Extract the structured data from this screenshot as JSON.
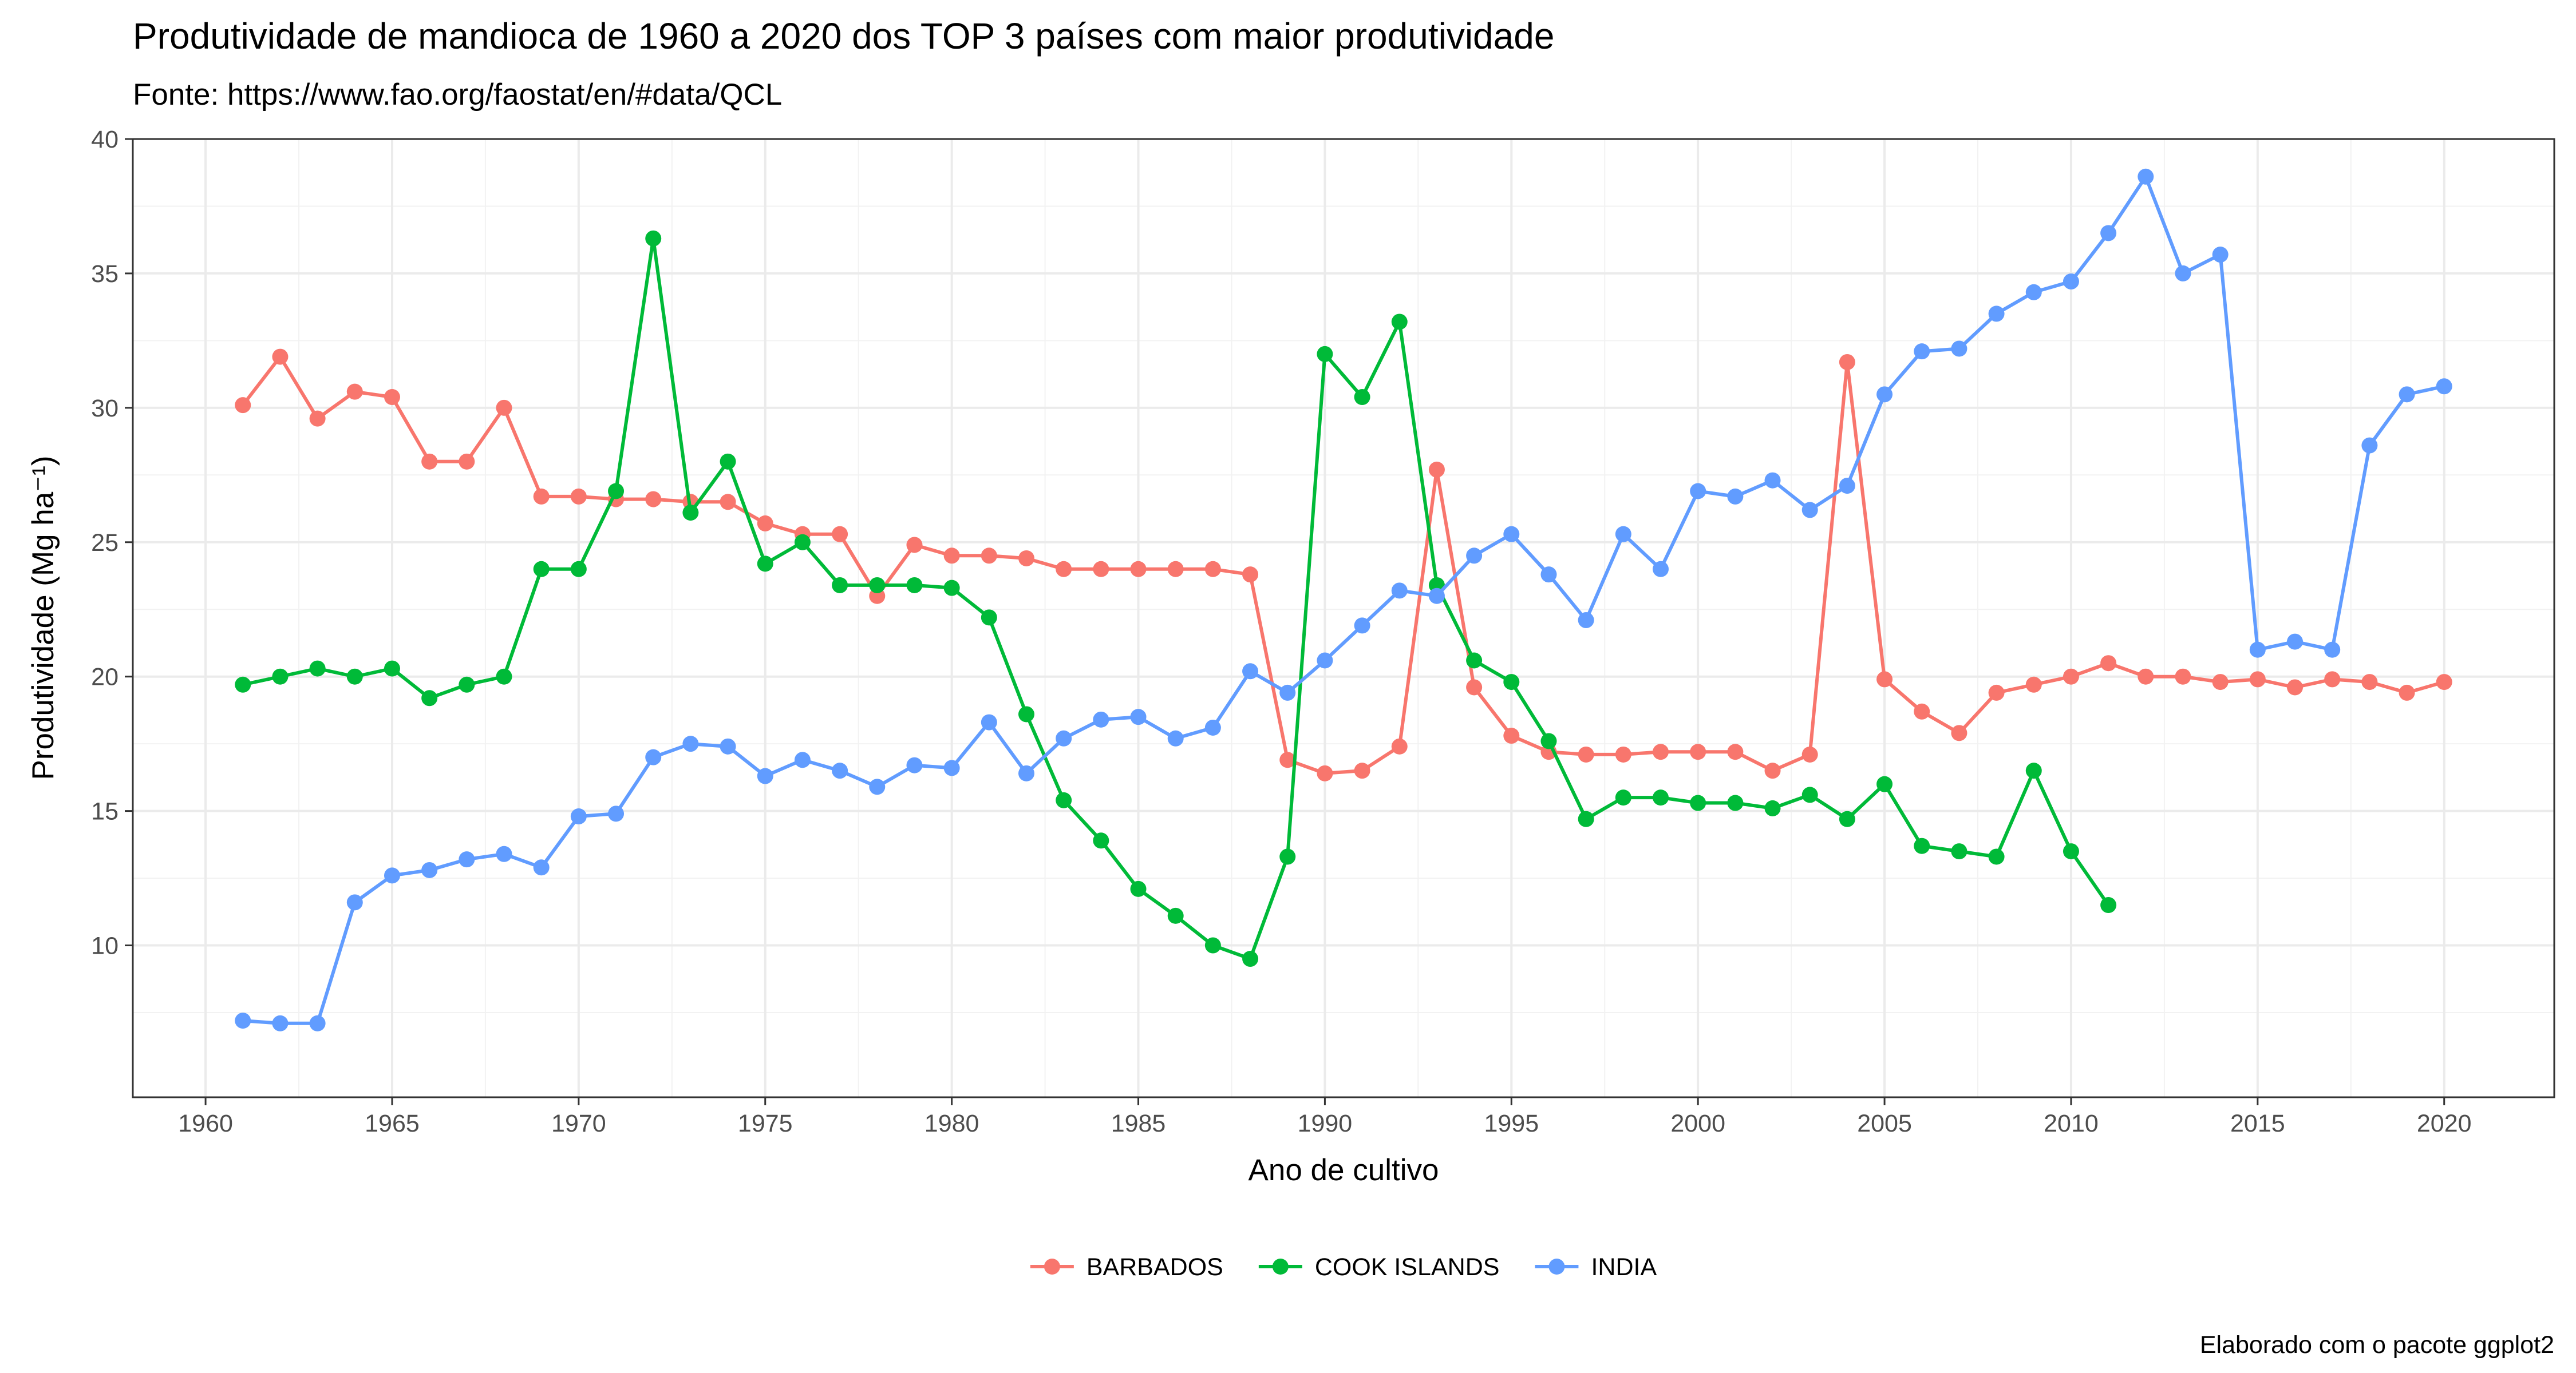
{
  "title": "Produtividade de mandioca de 1960 a 2020 dos TOP 3 países com maior produtividade",
  "subtitle": "Fonte: https://www.fao.org/faostat/en/#data/QCL",
  "caption": "Elaborado com o pacote ggplot2",
  "chart_data": {
    "type": "line",
    "xlabel": "Ano de cultivo",
    "ylabel": "Produtividade (Mg ha⁻¹)",
    "xlim": [
      1958.05,
      2022.95
    ],
    "ylim": [
      4.35,
      40.0
    ],
    "x_ticks": [
      1960,
      1965,
      1970,
      1975,
      1980,
      1985,
      1990,
      1995,
      2000,
      2005,
      2010,
      2015,
      2020
    ],
    "y_ticks": [
      10,
      15,
      20,
      25,
      30,
      35,
      40
    ],
    "grid": true,
    "legend_position": "bottom",
    "series": [
      {
        "name": "BARBADOS",
        "color": "#F8766D",
        "x": [
          1961,
          1962,
          1963,
          1964,
          1965,
          1966,
          1967,
          1968,
          1969,
          1970,
          1971,
          1972,
          1973,
          1974,
          1975,
          1976,
          1977,
          1978,
          1979,
          1980,
          1981,
          1982,
          1983,
          1984,
          1985,
          1986,
          1987,
          1988,
          1989,
          1990,
          1991,
          1992,
          1993,
          1994,
          1995,
          1996,
          1997,
          1998,
          1999,
          2000,
          2001,
          2002,
          2003,
          2004,
          2005,
          2006,
          2007,
          2008,
          2009,
          2010,
          2011,
          2012,
          2013,
          2014,
          2015,
          2016,
          2017,
          2018,
          2019,
          2020
        ],
        "values": [
          30.1,
          31.9,
          29.6,
          30.6,
          30.4,
          28.0,
          28.0,
          30.0,
          26.7,
          26.7,
          26.6,
          26.6,
          26.5,
          26.5,
          25.7,
          25.3,
          25.3,
          23.0,
          24.9,
          24.5,
          24.5,
          24.4,
          24.0,
          24.0,
          24.0,
          24.0,
          24.0,
          23.8,
          16.9,
          16.4,
          16.5,
          17.4,
          27.7,
          19.6,
          17.8,
          17.2,
          17.1,
          17.1,
          17.2,
          17.2,
          17.2,
          16.5,
          17.1,
          31.7,
          19.9,
          18.7,
          17.9,
          19.4,
          19.7,
          20.0,
          20.5,
          20.0,
          20.0,
          19.8,
          19.9,
          19.6,
          19.9,
          19.8,
          19.4,
          19.8
        ]
      },
      {
        "name": "COOK ISLANDS",
        "color": "#00BA38",
        "x": [
          1961,
          1962,
          1963,
          1964,
          1965,
          1966,
          1967,
          1968,
          1969,
          1970,
          1971,
          1972,
          1973,
          1974,
          1975,
          1976,
          1977,
          1978,
          1979,
          1980,
          1981,
          1982,
          1983,
          1984,
          1985,
          1986,
          1987,
          1988,
          1989,
          1990,
          1991,
          1992,
          1993,
          1994,
          1995,
          1996,
          1997,
          1998,
          1999,
          2000,
          2001,
          2002,
          2003,
          2004,
          2005,
          2006,
          2007,
          2008,
          2009,
          2010,
          2011
        ],
        "values": [
          19.7,
          20.0,
          20.3,
          20.0,
          20.3,
          19.2,
          19.7,
          20.0,
          24.0,
          24.0,
          26.9,
          36.3,
          26.1,
          28.0,
          24.2,
          25.0,
          23.4,
          23.4,
          23.4,
          23.3,
          22.2,
          18.6,
          15.4,
          13.9,
          12.1,
          11.1,
          10.0,
          9.5,
          13.3,
          32.0,
          30.4,
          33.2,
          23.4,
          20.6,
          19.8,
          17.6,
          14.7,
          15.5,
          15.5,
          15.3,
          15.3,
          15.1,
          15.6,
          14.7,
          16.0,
          13.7,
          13.5,
          13.3,
          16.5,
          13.5,
          11.5
        ]
      },
      {
        "name": "INDIA",
        "color": "#619CFF",
        "x": [
          1961,
          1962,
          1963,
          1964,
          1965,
          1966,
          1967,
          1968,
          1969,
          1970,
          1971,
          1972,
          1973,
          1974,
          1975,
          1976,
          1977,
          1978,
          1979,
          1980,
          1981,
          1982,
          1983,
          1984,
          1985,
          1986,
          1987,
          1988,
          1989,
          1990,
          1991,
          1992,
          1993,
          1994,
          1995,
          1996,
          1997,
          1998,
          1999,
          2000,
          2001,
          2002,
          2003,
          2004,
          2005,
          2006,
          2007,
          2008,
          2009,
          2010,
          2011,
          2012,
          2013,
          2014,
          2015,
          2016,
          2017,
          2018,
          2019,
          2020
        ],
        "values": [
          7.2,
          7.1,
          7.1,
          11.6,
          12.6,
          12.8,
          13.2,
          13.4,
          12.9,
          14.8,
          14.9,
          17.0,
          17.5,
          17.4,
          16.3,
          16.9,
          16.5,
          15.9,
          16.7,
          16.6,
          18.3,
          16.4,
          17.7,
          18.4,
          18.5,
          17.7,
          18.1,
          20.2,
          19.4,
          20.6,
          21.9,
          23.2,
          23.0,
          24.5,
          25.3,
          23.8,
          22.1,
          25.3,
          24.0,
          26.9,
          26.7,
          27.3,
          26.2,
          27.1,
          30.5,
          32.1,
          32.2,
          33.5,
          34.3,
          34.7,
          36.5,
          38.6,
          35.0,
          35.7,
          21.0,
          21.3,
          21.0,
          28.6,
          30.5,
          30.8
        ]
      }
    ]
  }
}
